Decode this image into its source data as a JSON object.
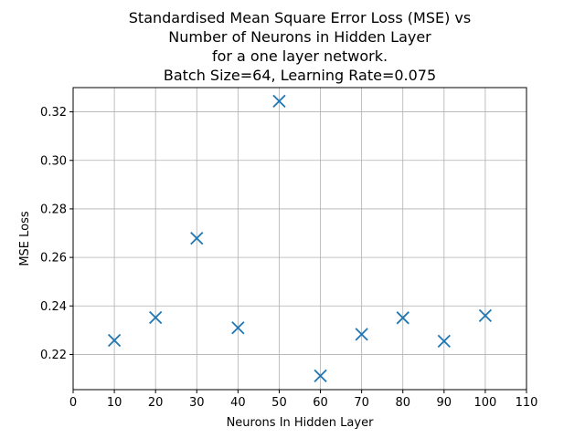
{
  "colors": {
    "marker": "#1f77b4",
    "grid": "#b0b0b0",
    "axis": "#000000"
  },
  "chart_data": {
    "type": "scatter",
    "title_lines": [
      "Standardised Mean Square Error Loss (MSE) vs",
      "Number of Neurons in Hidden Layer",
      "for a one layer network.",
      "Batch Size=64, Learning Rate=0.075"
    ],
    "xlabel": "Neurons In Hidden Layer",
    "ylabel": "MSE Loss",
    "xlim": [
      0,
      110
    ],
    "ylim": [
      0.2055,
      0.33
    ],
    "xticks": [
      0,
      10,
      20,
      30,
      40,
      50,
      60,
      70,
      80,
      90,
      100,
      110
    ],
    "yticks": [
      0.22,
      0.24,
      0.26,
      0.28,
      0.3,
      0.32
    ],
    "ytick_labels": [
      "0.22",
      "0.24",
      "0.26",
      "0.28",
      "0.30",
      "0.32"
    ],
    "grid": true,
    "marker": "x",
    "series": [
      {
        "name": "MSE Loss",
        "x": [
          10,
          20,
          30,
          40,
          50,
          60,
          70,
          80,
          90,
          100
        ],
        "y": [
          0.2258,
          0.2352,
          0.2679,
          0.231,
          0.3244,
          0.2112,
          0.2283,
          0.2351,
          0.2255,
          0.236
        ]
      }
    ]
  }
}
